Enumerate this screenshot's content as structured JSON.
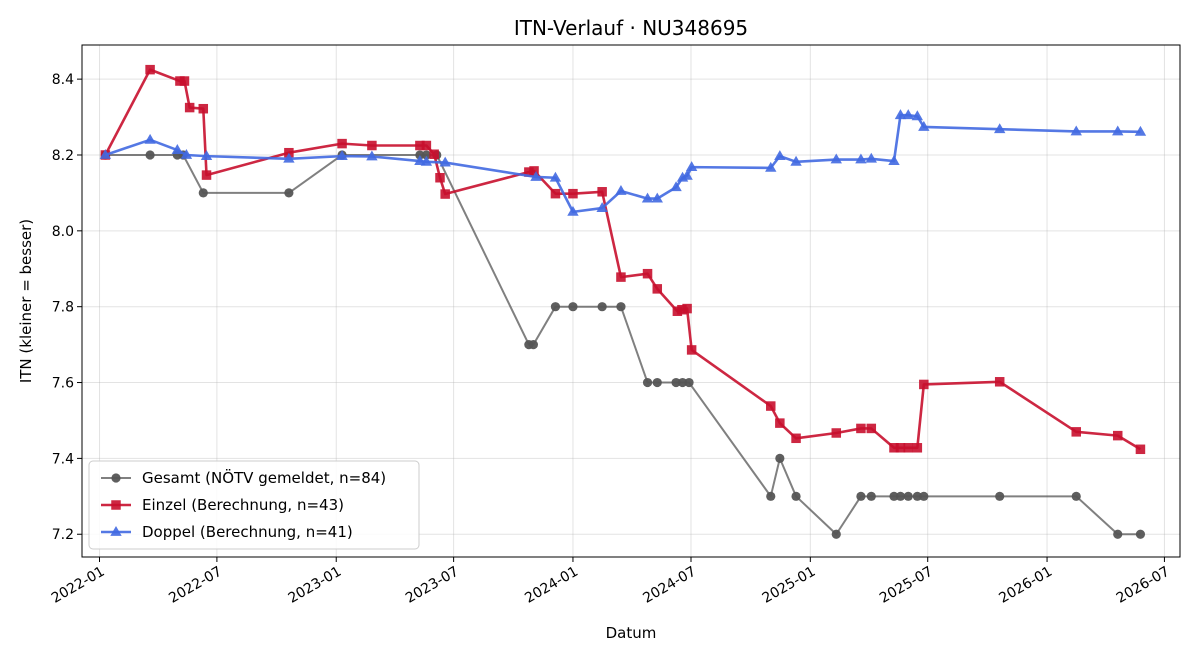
{
  "chart_data": {
    "type": "line",
    "title": "ITN-Verlauf · NU348695",
    "xlabel": "Datum",
    "ylabel": "ITN  (kleiner = besser)",
    "x_type": "date",
    "xlim": [
      "2021-12-05",
      "2026-07-25"
    ],
    "ylim": [
      7.14,
      8.49
    ],
    "x_ticks": [
      "2022-01",
      "2022-07",
      "2023-01",
      "2023-07",
      "2024-01",
      "2024-07",
      "2025-01",
      "2025-07",
      "2026-01",
      "2026-07"
    ],
    "y_ticks": [
      "7.2",
      "7.4",
      "7.6",
      "7.8",
      "8.0",
      "8.2",
      "8.4"
    ],
    "grid": true,
    "legend_position": "lower-left",
    "series": [
      {
        "name": "Gesamt (NÖTV gemeldet, n=84)",
        "color": "#555555",
        "marker": "circle",
        "points": [
          [
            "2022-01-10",
            8.2
          ],
          [
            "2022-03-20",
            8.2
          ],
          [
            "2022-05-01",
            8.2
          ],
          [
            "2022-05-10",
            8.2
          ],
          [
            "2022-06-10",
            8.1
          ],
          [
            "2022-10-20",
            8.1
          ],
          [
            "2023-01-10",
            8.2
          ],
          [
            "2023-05-10",
            8.2
          ],
          [
            "2023-05-20",
            8.2
          ],
          [
            "2023-06-05",
            8.2
          ],
          [
            "2023-10-25",
            7.7
          ],
          [
            "2023-11-01",
            7.7
          ],
          [
            "2023-12-05",
            7.8
          ],
          [
            "2024-01-01",
            7.8
          ],
          [
            "2024-02-15",
            7.8
          ],
          [
            "2024-03-15",
            7.8
          ],
          [
            "2024-04-25",
            7.6
          ],
          [
            "2024-05-10",
            7.6
          ],
          [
            "2024-06-08",
            7.6
          ],
          [
            "2024-06-18",
            7.6
          ],
          [
            "2024-06-28",
            7.6
          ],
          [
            "2024-11-01",
            7.3
          ],
          [
            "2024-11-15",
            7.4
          ],
          [
            "2024-12-10",
            7.3
          ],
          [
            "2025-02-10",
            7.2
          ],
          [
            "2025-03-20",
            7.3
          ],
          [
            "2025-04-05",
            7.3
          ],
          [
            "2025-05-10",
            7.3
          ],
          [
            "2025-05-20",
            7.3
          ],
          [
            "2025-06-01",
            7.3
          ],
          [
            "2025-06-15",
            7.3
          ],
          [
            "2025-06-25",
            7.3
          ],
          [
            "2025-10-20",
            7.3
          ],
          [
            "2026-02-15",
            7.3
          ],
          [
            "2026-04-20",
            7.2
          ],
          [
            "2026-05-25",
            7.2
          ]
        ]
      },
      {
        "name": "Einzel (Berechnung, n=43)",
        "color": "#c8102e",
        "marker": "square",
        "points": [
          [
            "2022-01-10",
            8.2
          ],
          [
            "2022-03-20",
            8.425
          ],
          [
            "2022-05-05",
            8.395
          ],
          [
            "2022-05-12",
            8.395
          ],
          [
            "2022-05-20",
            8.325
          ],
          [
            "2022-06-10",
            8.322
          ],
          [
            "2022-06-15",
            8.147
          ],
          [
            "2022-10-20",
            8.206
          ],
          [
            "2023-01-10",
            8.23
          ],
          [
            "2023-02-25",
            8.225
          ],
          [
            "2023-05-10",
            8.225
          ],
          [
            "2023-05-20",
            8.225
          ],
          [
            "2023-06-01",
            8.202
          ],
          [
            "2023-06-10",
            8.14
          ],
          [
            "2023-06-18",
            8.097
          ],
          [
            "2023-10-25",
            8.155
          ],
          [
            "2023-11-02",
            8.158
          ],
          [
            "2023-12-05",
            8.098
          ],
          [
            "2024-01-01",
            8.098
          ],
          [
            "2024-02-15",
            8.103
          ],
          [
            "2024-03-15",
            7.878
          ],
          [
            "2024-04-25",
            7.887
          ],
          [
            "2024-05-10",
            7.847
          ],
          [
            "2024-06-10",
            7.788
          ],
          [
            "2024-06-17",
            7.792
          ],
          [
            "2024-06-25",
            7.795
          ],
          [
            "2024-07-02",
            7.686
          ],
          [
            "2024-11-01",
            7.538
          ],
          [
            "2024-11-15",
            7.493
          ],
          [
            "2024-12-10",
            7.453
          ],
          [
            "2025-02-10",
            7.467
          ],
          [
            "2025-03-20",
            7.479
          ],
          [
            "2025-04-05",
            7.479
          ],
          [
            "2025-05-10",
            7.428
          ],
          [
            "2025-05-20",
            7.428
          ],
          [
            "2025-06-01",
            7.428
          ],
          [
            "2025-06-15",
            7.428
          ],
          [
            "2025-06-25",
            7.595
          ],
          [
            "2025-10-20",
            7.602
          ],
          [
            "2026-02-15",
            7.47
          ],
          [
            "2026-04-20",
            7.46
          ],
          [
            "2026-05-25",
            7.424
          ]
        ]
      },
      {
        "name": "Doppel (Berechnung, n=41)",
        "color": "#4169e1",
        "marker": "triangle",
        "points": [
          [
            "2022-01-10",
            8.2
          ],
          [
            "2022-03-20",
            8.24
          ],
          [
            "2022-05-01",
            8.213
          ],
          [
            "2022-05-15",
            8.2
          ],
          [
            "2022-06-15",
            8.197
          ],
          [
            "2022-10-20",
            8.19
          ],
          [
            "2023-01-10",
            8.197
          ],
          [
            "2023-02-25",
            8.196
          ],
          [
            "2023-05-10",
            8.184
          ],
          [
            "2023-05-20",
            8.182
          ],
          [
            "2023-06-18",
            8.18
          ],
          [
            "2023-11-05",
            8.142
          ],
          [
            "2023-12-05",
            8.14
          ],
          [
            "2024-01-01",
            8.05
          ],
          [
            "2024-02-15",
            8.06
          ],
          [
            "2024-03-15",
            8.105
          ],
          [
            "2024-04-25",
            8.085
          ],
          [
            "2024-05-10",
            8.085
          ],
          [
            "2024-06-08",
            8.115
          ],
          [
            "2024-06-18",
            8.14
          ],
          [
            "2024-06-25",
            8.145
          ],
          [
            "2024-07-02",
            8.168
          ],
          [
            "2024-11-01",
            8.166
          ],
          [
            "2024-11-15",
            8.197
          ],
          [
            "2024-12-10",
            8.182
          ],
          [
            "2025-02-10",
            8.188
          ],
          [
            "2025-03-20",
            8.188
          ],
          [
            "2025-04-05",
            8.19
          ],
          [
            "2025-05-10",
            8.184
          ],
          [
            "2025-05-20",
            8.305
          ],
          [
            "2025-06-01",
            8.305
          ],
          [
            "2025-06-15",
            8.302
          ],
          [
            "2025-06-25",
            8.274
          ],
          [
            "2025-10-20",
            8.268
          ],
          [
            "2026-02-15",
            8.262
          ],
          [
            "2026-04-20",
            8.262
          ],
          [
            "2026-05-25",
            8.261
          ]
        ]
      }
    ]
  }
}
